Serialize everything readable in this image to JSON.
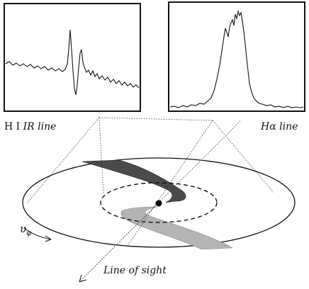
{
  "labels": {
    "left_panel_roman": "H I",
    "left_panel_italic": "IR line",
    "right_panel": "Hα line",
    "line_of_sight": "Line of sight",
    "velocity_symbol": "υ",
    "velocity_subscript": "φ"
  },
  "colors": {
    "stroke": "#111111",
    "dark_arm": "#4a4a4a",
    "light_arm": "#b4b4b4",
    "background": "#ffffff"
  }
}
